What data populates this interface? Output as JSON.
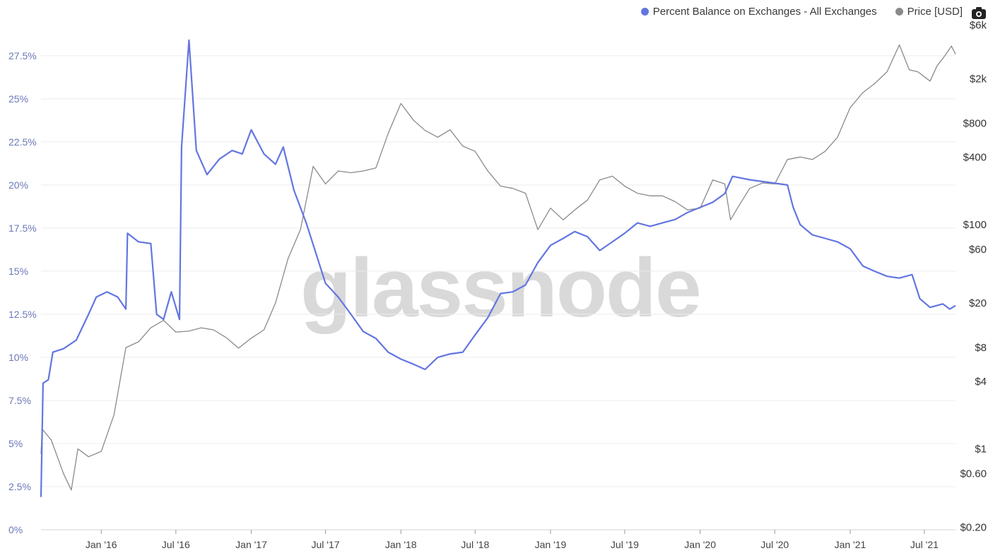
{
  "legend": {
    "series1_label": "Percent Balance on Exchanges - All Exchanges",
    "series2_label": "Price [USD]"
  },
  "watermark": "glassnode",
  "colors": {
    "percent": "#6376e0",
    "price": "#8a8a8a",
    "dark_overlap": "#333a6b",
    "grid": "#ececec"
  },
  "chart_data": {
    "type": "line",
    "left_axis": {
      "ticks": [
        0,
        2.5,
        5,
        7.5,
        10,
        12.5,
        15,
        17.5,
        20,
        22.5,
        25,
        27.5
      ],
      "tick_labels": [
        "0%",
        "2.5%",
        "5%",
        "7.5%",
        "10%",
        "12.5%",
        "15%",
        "17.5%",
        "20%",
        "22.5%",
        "25%",
        "27.5%"
      ],
      "range": [
        0,
        29.5
      ]
    },
    "right_axis": {
      "scale": "log",
      "ticks": [
        0.2,
        0.6,
        1,
        4,
        8,
        20,
        60,
        100,
        400,
        800,
        2000,
        6000
      ],
      "tick_labels": [
        "$0.20",
        "$0.60",
        "$1",
        "$4",
        "$8",
        "$20",
        "$60",
        "$100",
        "$400",
        "$800",
        "$2k",
        "$6k"
      ],
      "range": [
        0.19,
        6500
      ]
    },
    "x_axis": {
      "range": [
        "2015-08-07",
        "2021-09-15"
      ],
      "ticks": [
        "2016-01-01",
        "2016-07-01",
        "2017-01-01",
        "2017-07-01",
        "2018-01-01",
        "2018-07-01",
        "2019-01-01",
        "2019-07-01",
        "2020-01-01",
        "2020-07-01",
        "2021-01-01",
        "2021-07-01"
      ],
      "tick_labels": [
        "Jan '16",
        "Jul '16",
        "Jan '17",
        "Jul '17",
        "Jan '18",
        "Jul '18",
        "Jan '19",
        "Jul '19",
        "Jan '20",
        "Jul '20",
        "Jan '21",
        "Jul '21"
      ]
    },
    "grid": true,
    "legend_position": "top-right",
    "series": [
      {
        "name": "Percent Balance on Exchanges - All Exchanges",
        "axis": "left",
        "points": [
          [
            "2015-08-07",
            1.9
          ],
          [
            "2015-08-12",
            8.5
          ],
          [
            "2015-08-25",
            8.7
          ],
          [
            "2015-09-05",
            10.3
          ],
          [
            "2015-10-01",
            10.5
          ],
          [
            "2015-11-01",
            11.0
          ],
          [
            "2015-12-01",
            12.5
          ],
          [
            "2015-12-20",
            13.5
          ],
          [
            "2016-01-15",
            13.8
          ],
          [
            "2016-02-10",
            13.5
          ],
          [
            "2016-03-01",
            12.8
          ],
          [
            "2016-03-05",
            17.2
          ],
          [
            "2016-04-01",
            16.7
          ],
          [
            "2016-05-01",
            16.6
          ],
          [
            "2016-05-15",
            12.5
          ],
          [
            "2016-06-01",
            12.2
          ],
          [
            "2016-06-20",
            13.8
          ],
          [
            "2016-07-10",
            12.2
          ],
          [
            "2016-07-15",
            22.2
          ],
          [
            "2016-08-02",
            28.4
          ],
          [
            "2016-08-20",
            22.0
          ],
          [
            "2016-09-15",
            20.6
          ],
          [
            "2016-10-15",
            21.5
          ],
          [
            "2016-11-15",
            22.0
          ],
          [
            "2016-12-10",
            21.8
          ],
          [
            "2017-01-01",
            23.2
          ],
          [
            "2017-02-01",
            21.8
          ],
          [
            "2017-03-01",
            21.2
          ],
          [
            "2017-03-20",
            22.2
          ],
          [
            "2017-04-15",
            19.7
          ],
          [
            "2017-05-15",
            17.8
          ],
          [
            "2017-06-15",
            15.5
          ],
          [
            "2017-07-01",
            14.3
          ],
          [
            "2017-08-01",
            13.5
          ],
          [
            "2017-09-01",
            12.5
          ],
          [
            "2017-10-01",
            11.5
          ],
          [
            "2017-11-01",
            11.1
          ],
          [
            "2017-12-01",
            10.3
          ],
          [
            "2018-01-01",
            9.9
          ],
          [
            "2018-02-01",
            9.6
          ],
          [
            "2018-03-01",
            9.3
          ],
          [
            "2018-04-01",
            10.0
          ],
          [
            "2018-05-01",
            10.2
          ],
          [
            "2018-06-01",
            10.3
          ],
          [
            "2018-07-01",
            11.3
          ],
          [
            "2018-08-01",
            12.3
          ],
          [
            "2018-09-01",
            13.7
          ],
          [
            "2018-10-01",
            13.8
          ],
          [
            "2018-11-01",
            14.2
          ],
          [
            "2018-12-01",
            15.5
          ],
          [
            "2019-01-01",
            16.5
          ],
          [
            "2019-02-01",
            16.9
          ],
          [
            "2019-03-01",
            17.3
          ],
          [
            "2019-04-01",
            17.0
          ],
          [
            "2019-05-01",
            16.2
          ],
          [
            "2019-06-01",
            16.7
          ],
          [
            "2019-07-01",
            17.2
          ],
          [
            "2019-08-01",
            17.8
          ],
          [
            "2019-09-01",
            17.6
          ],
          [
            "2019-10-01",
            17.8
          ],
          [
            "2019-11-01",
            18.0
          ],
          [
            "2019-12-01",
            18.4
          ],
          [
            "2020-01-01",
            18.7
          ],
          [
            "2020-02-01",
            19.0
          ],
          [
            "2020-03-01",
            19.5
          ],
          [
            "2020-03-20",
            20.5
          ],
          [
            "2020-05-01",
            20.3
          ],
          [
            "2020-06-01",
            20.2
          ],
          [
            "2020-07-01",
            20.1
          ],
          [
            "2020-08-01",
            20.0
          ],
          [
            "2020-08-15",
            18.7
          ],
          [
            "2020-09-01",
            17.7
          ],
          [
            "2020-10-01",
            17.1
          ],
          [
            "2020-11-01",
            16.9
          ],
          [
            "2020-12-01",
            16.7
          ],
          [
            "2021-01-01",
            16.3
          ],
          [
            "2021-02-01",
            15.3
          ],
          [
            "2021-03-01",
            15.0
          ],
          [
            "2021-04-01",
            14.7
          ],
          [
            "2021-05-01",
            14.6
          ],
          [
            "2021-06-01",
            14.8
          ],
          [
            "2021-06-20",
            13.4
          ],
          [
            "2021-07-15",
            12.9
          ],
          [
            "2021-08-15",
            13.1
          ],
          [
            "2021-09-01",
            12.8
          ],
          [
            "2021-09-15",
            13.0
          ]
        ]
      },
      {
        "name": "Price [USD]",
        "axis": "right",
        "points": [
          [
            "2015-08-07",
            0.9
          ],
          [
            "2015-08-10",
            1.5
          ],
          [
            "2015-09-01",
            1.2
          ],
          [
            "2015-10-01",
            0.6
          ],
          [
            "2015-10-20",
            0.43
          ],
          [
            "2015-11-05",
            1.0
          ],
          [
            "2015-12-01",
            0.85
          ],
          [
            "2016-01-01",
            0.95
          ],
          [
            "2016-02-01",
            2.0
          ],
          [
            "2016-03-01",
            8.0
          ],
          [
            "2016-04-01",
            9.0
          ],
          [
            "2016-05-01",
            12.0
          ],
          [
            "2016-06-01",
            14.0
          ],
          [
            "2016-07-01",
            11.0
          ],
          [
            "2016-08-01",
            11.2
          ],
          [
            "2016-09-01",
            12.0
          ],
          [
            "2016-10-01",
            11.5
          ],
          [
            "2016-11-01",
            9.8
          ],
          [
            "2016-12-01",
            7.9
          ],
          [
            "2017-01-01",
            9.7
          ],
          [
            "2017-02-01",
            11.5
          ],
          [
            "2017-03-01",
            20.0
          ],
          [
            "2017-04-01",
            50.0
          ],
          [
            "2017-05-01",
            90.0
          ],
          [
            "2017-06-01",
            330.0
          ],
          [
            "2017-07-01",
            230.0
          ],
          [
            "2017-08-01",
            300.0
          ],
          [
            "2017-09-01",
            290.0
          ],
          [
            "2017-10-01",
            300.0
          ],
          [
            "2017-11-01",
            320.0
          ],
          [
            "2017-12-01",
            650.0
          ],
          [
            "2018-01-01",
            1200.0
          ],
          [
            "2018-02-01",
            850.0
          ],
          [
            "2018-03-01",
            690.0
          ],
          [
            "2018-04-01",
            600.0
          ],
          [
            "2018-05-01",
            700.0
          ],
          [
            "2018-06-01",
            500.0
          ],
          [
            "2018-07-01",
            450.0
          ],
          [
            "2018-08-01",
            300.0
          ],
          [
            "2018-09-01",
            220.0
          ],
          [
            "2018-10-01",
            210.0
          ],
          [
            "2018-11-01",
            190.0
          ],
          [
            "2018-12-01",
            90.0
          ],
          [
            "2019-01-01",
            140.0
          ],
          [
            "2019-02-01",
            110.0
          ],
          [
            "2019-03-01",
            135.0
          ],
          [
            "2019-04-01",
            165.0
          ],
          [
            "2019-05-01",
            250.0
          ],
          [
            "2019-06-01",
            270.0
          ],
          [
            "2019-07-01",
            220.0
          ],
          [
            "2019-08-01",
            190.0
          ],
          [
            "2019-09-01",
            180.0
          ],
          [
            "2019-10-01",
            180.0
          ],
          [
            "2019-11-01",
            160.0
          ],
          [
            "2019-12-01",
            135.0
          ],
          [
            "2020-01-01",
            140.0
          ],
          [
            "2020-02-01",
            250.0
          ],
          [
            "2020-03-01",
            230.0
          ],
          [
            "2020-03-15",
            110.0
          ],
          [
            "2020-04-01",
            140.0
          ],
          [
            "2020-05-01",
            210.0
          ],
          [
            "2020-06-01",
            235.0
          ],
          [
            "2020-07-01",
            230.0
          ],
          [
            "2020-08-01",
            380.0
          ],
          [
            "2020-09-01",
            400.0
          ],
          [
            "2020-10-01",
            380.0
          ],
          [
            "2020-11-01",
            450.0
          ],
          [
            "2020-12-01",
            600.0
          ],
          [
            "2021-01-01",
            1100.0
          ],
          [
            "2021-02-01",
            1500.0
          ],
          [
            "2021-03-01",
            1800.0
          ],
          [
            "2021-04-01",
            2300.0
          ],
          [
            "2021-05-01",
            4000.0
          ],
          [
            "2021-05-25",
            2400.0
          ],
          [
            "2021-06-15",
            2300.0
          ],
          [
            "2021-07-15",
            1900.0
          ],
          [
            "2021-08-01",
            2600.0
          ],
          [
            "2021-08-20",
            3200.0
          ],
          [
            "2021-09-05",
            3900.0
          ],
          [
            "2021-09-15",
            3300.0
          ]
        ]
      }
    ]
  }
}
